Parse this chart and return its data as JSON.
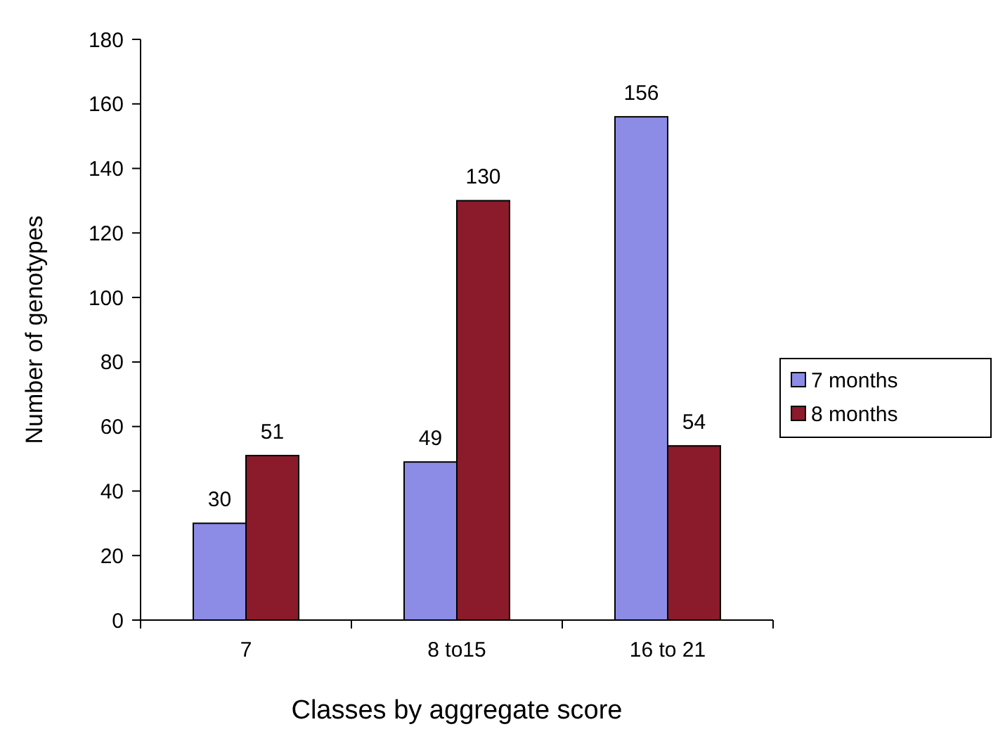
{
  "chart_data": {
    "type": "bar",
    "xlabel": "Classes by aggregate score",
    "ylabel": "Number of genotypes",
    "categories": [
      "7",
      "8 to15",
      "16 to 21"
    ],
    "series": [
      {
        "name": "7 months",
        "color": "#8c8ce6",
        "values": [
          30,
          49,
          156
        ]
      },
      {
        "name": "8 months",
        "color": "#8b1a2a",
        "values": [
          51,
          130,
          54
        ]
      }
    ],
    "ylim": [
      0,
      180
    ],
    "yticks": [
      0,
      20,
      40,
      60,
      80,
      100,
      120,
      140,
      160,
      180
    ],
    "data_labels": true,
    "legend": "right",
    "grid": false
  }
}
